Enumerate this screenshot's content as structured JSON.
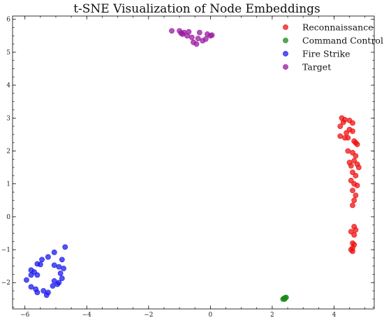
{
  "chart_data": {
    "type": "scatter",
    "title": "t-SNE Visualization of Node Embeddings",
    "xlabel": "",
    "ylabel": "",
    "xlim": [
      -6.4,
      5.3
    ],
    "ylim": [
      -2.8,
      6.1
    ],
    "x_ticks": [
      -6,
      -4,
      -2,
      0,
      2,
      4
    ],
    "y_ticks": [
      -2,
      -1,
      0,
      1,
      2,
      3,
      4,
      5,
      6
    ],
    "grid": false,
    "legend_position": "top-right",
    "series": [
      {
        "name": "Reconnaissance",
        "color": "#ee1111",
        "points": [
          [
            4.25,
            3.0
          ],
          [
            4.35,
            2.95
          ],
          [
            4.5,
            2.93
          ],
          [
            4.3,
            2.87
          ],
          [
            4.6,
            2.85
          ],
          [
            4.2,
            2.75
          ],
          [
            4.5,
            2.65
          ],
          [
            4.6,
            2.6
          ],
          [
            4.4,
            2.55
          ],
          [
            4.2,
            2.45
          ],
          [
            4.35,
            2.4
          ],
          [
            4.45,
            2.4
          ],
          [
            4.65,
            2.3
          ],
          [
            4.7,
            2.25
          ],
          [
            4.75,
            2.2
          ],
          [
            4.45,
            2.0
          ],
          [
            4.6,
            1.95
          ],
          [
            4.7,
            1.85
          ],
          [
            4.65,
            1.7
          ],
          [
            4.5,
            1.65
          ],
          [
            4.75,
            1.6
          ],
          [
            4.55,
            1.55
          ],
          [
            4.8,
            1.5
          ],
          [
            4.6,
            1.35
          ],
          [
            4.7,
            1.25
          ],
          [
            4.55,
            1.1
          ],
          [
            4.65,
            1.0
          ],
          [
            4.75,
            0.95
          ],
          [
            4.6,
            0.8
          ],
          [
            4.7,
            0.65
          ],
          [
            4.65,
            0.5
          ],
          [
            4.6,
            0.35
          ],
          [
            4.65,
            -0.3
          ],
          [
            4.7,
            -0.4
          ],
          [
            4.55,
            -0.45
          ],
          [
            4.65,
            -0.55
          ],
          [
            4.6,
            -0.8
          ],
          [
            4.65,
            -0.85
          ],
          [
            4.6,
            -0.95
          ],
          [
            4.55,
            -1.0
          ],
          [
            4.6,
            -1.05
          ]
        ]
      },
      {
        "name": "Command Control",
        "color": "#1a8a1a",
        "points": [
          [
            2.38,
            -2.48
          ],
          [
            2.42,
            -2.46
          ],
          [
            2.45,
            -2.45
          ],
          [
            2.35,
            -2.5
          ],
          [
            2.4,
            -2.5
          ]
        ]
      },
      {
        "name": "Fire Strike",
        "color": "#1a1aee",
        "points": [
          [
            -4.7,
            -0.92
          ],
          [
            -5.05,
            -1.08
          ],
          [
            -5.25,
            -1.22
          ],
          [
            -5.45,
            -1.3
          ],
          [
            -4.8,
            -1.3
          ],
          [
            -5.6,
            -1.43
          ],
          [
            -5.5,
            -1.45
          ],
          [
            -5.05,
            -1.47
          ],
          [
            -4.9,
            -1.52
          ],
          [
            -4.75,
            -1.57
          ],
          [
            -5.8,
            -1.62
          ],
          [
            -5.7,
            -1.68
          ],
          [
            -4.85,
            -1.72
          ],
          [
            -5.8,
            -1.77
          ],
          [
            -5.6,
            -1.77
          ],
          [
            -4.8,
            -1.87
          ],
          [
            -5.95,
            -1.92
          ],
          [
            -5.05,
            -1.95
          ],
          [
            -4.9,
            -2.0
          ],
          [
            -4.95,
            -2.05
          ],
          [
            -5.1,
            -2.1
          ],
          [
            -5.8,
            -2.13
          ],
          [
            -5.65,
            -2.2
          ],
          [
            -5.4,
            -2.25
          ],
          [
            -5.6,
            -2.3
          ],
          [
            -5.25,
            -2.3
          ],
          [
            -5.3,
            -2.38
          ]
        ]
      },
      {
        "name": "Target",
        "color": "#9a1aa0",
        "points": [
          [
            -1.25,
            5.65
          ],
          [
            -1.0,
            5.65
          ],
          [
            -0.95,
            5.58
          ],
          [
            -0.85,
            5.6
          ],
          [
            -0.7,
            5.62
          ],
          [
            -0.75,
            5.5
          ],
          [
            -0.6,
            5.45
          ],
          [
            -0.4,
            5.42
          ],
          [
            -0.25,
            5.35
          ],
          [
            -0.15,
            5.4
          ],
          [
            -0.55,
            5.3
          ],
          [
            -0.45,
            5.25
          ],
          [
            -0.1,
            5.55
          ],
          [
            0.0,
            5.5
          ],
          [
            0.05,
            5.52
          ],
          [
            -0.35,
            5.6
          ],
          [
            -0.9,
            5.55
          ]
        ]
      }
    ]
  }
}
